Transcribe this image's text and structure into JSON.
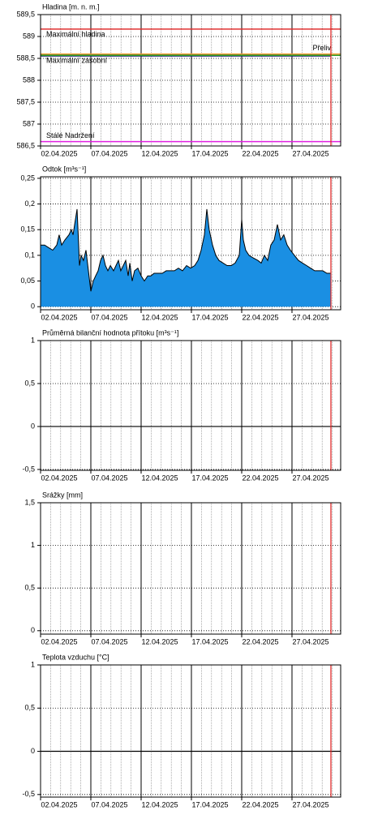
{
  "chart_data": [
    {
      "type": "line",
      "title": "Hladina [m. n. m.]",
      "xlim": [
        2,
        31.84
      ],
      "xticks": [
        {
          "value": 2,
          "label": "02.04.2025"
        },
        {
          "value": 7,
          "label": "07.04.2025"
        },
        {
          "value": 12,
          "label": "12.04.2025"
        },
        {
          "value": 17,
          "label": "17.04.2025"
        },
        {
          "value": 22,
          "label": "22.04.2025"
        },
        {
          "value": 27,
          "label": "27.04.2025"
        }
      ],
      "xminorticks": [
        3,
        4,
        5,
        6,
        8,
        9,
        10,
        11,
        13,
        14,
        15,
        16,
        18,
        19,
        20,
        21,
        23,
        24,
        25,
        26,
        28,
        29,
        30,
        31
      ],
      "ylim": [
        586.5,
        589.5
      ],
      "yticks": [
        {
          "value": 586.5,
          "label": "586,5"
        },
        587,
        {
          "value": 587.5,
          "label": "587,5"
        },
        588,
        {
          "value": 588.5,
          "label": "588,5"
        },
        589,
        {
          "value": 589.5,
          "label": "589,5"
        }
      ],
      "grid": true,
      "vline": 30.87,
      "vline_color": "#e02020",
      "hlines": [
        {
          "label": "Maximální hladina",
          "color": "#e03030",
          "value": 589.17,
          "label_align": "left"
        },
        {
          "label": "Přeliv",
          "color": "#f0a030",
          "value": 588.6,
          "label_align": "right"
        },
        {
          "label": "Maximální zásobní",
          "color": "#2a9a2a",
          "value": 588.57,
          "label_align": "left"
        },
        {
          "label": "Stálé Nadržení",
          "color": "#e020e0",
          "value": 586.6,
          "label_align": "left"
        }
      ],
      "series": [
        {
          "color": "#1a1a6e",
          "x": [
            2,
            30.87
          ],
          "values": [
            588.57,
            588.57
          ]
        }
      ]
    },
    {
      "type": "area",
      "title": "Odtok [m³s⁻¹]",
      "xlim": [
        2,
        31.84
      ],
      "xticks": [
        {
          "value": 2,
          "label": "02.04.2025"
        },
        {
          "value": 7,
          "label": "07.04.2025"
        },
        {
          "value": 12,
          "label": "12.04.2025"
        },
        {
          "value": 17,
          "label": "17.04.2025"
        },
        {
          "value": 22,
          "label": "22.04.2025"
        },
        {
          "value": 27,
          "label": "27.04.2025"
        }
      ],
      "xminorticks": [
        3,
        4,
        5,
        6,
        8,
        9,
        10,
        11,
        13,
        14,
        15,
        16,
        18,
        19,
        20,
        21,
        23,
        24,
        25,
        26,
        28,
        29,
        30,
        31
      ],
      "ylim": [
        -0.006,
        0.253
      ],
      "yticks": [
        0,
        {
          "value": 0.05,
          "label": "0,05"
        },
        {
          "value": 0.1,
          "label": "0,1"
        },
        {
          "value": 0.15,
          "label": "0,15"
        },
        {
          "value": 0.2,
          "label": "0,2"
        },
        {
          "value": 0.25,
          "label": "0,25"
        }
      ],
      "grid": true,
      "vline": 30.87,
      "vline_color": "#e02020",
      "series": [
        {
          "color": "#1a8fe3",
          "line_color": "#000000",
          "x": [
            2.0,
            2.4,
            2.81,
            3.21,
            3.61,
            3.85,
            4.1,
            4.42,
            4.82,
            5.06,
            5.23,
            5.39,
            5.63,
            5.79,
            5.87,
            6.03,
            6.27,
            6.52,
            6.76,
            7.0,
            7.24,
            7.48,
            7.73,
            7.97,
            8.21,
            8.45,
            8.69,
            8.94,
            9.26,
            9.5,
            9.74,
            9.98,
            10.23,
            10.47,
            10.71,
            10.87,
            11.11,
            11.35,
            11.68,
            12.0,
            12.32,
            12.65,
            12.97,
            13.29,
            13.69,
            14.1,
            14.5,
            14.9,
            15.31,
            15.71,
            16.11,
            16.52,
            16.92,
            17.32,
            17.65,
            17.97,
            18.29,
            18.53,
            18.77,
            19.1,
            19.42,
            19.74,
            20.15,
            20.55,
            20.95,
            21.35,
            21.76,
            22.0,
            22.16,
            22.4,
            22.73,
            23.13,
            23.61,
            23.94,
            24.26,
            24.58,
            24.9,
            25.23,
            25.55,
            25.87,
            26.19,
            26.52,
            26.84,
            27.24,
            27.65,
            28.05,
            28.45,
            28.85,
            29.26,
            29.66,
            30.06,
            30.47,
            30.87
          ],
          "values": [
            0.12,
            0.12,
            0.115,
            0.11,
            0.12,
            0.14,
            0.12,
            0.13,
            0.14,
            0.15,
            0.14,
            0.16,
            0.19,
            0.12,
            0.08,
            0.1,
            0.09,
            0.11,
            0.07,
            0.03,
            0.05,
            0.06,
            0.07,
            0.09,
            0.1,
            0.08,
            0.07,
            0.08,
            0.07,
            0.08,
            0.09,
            0.07,
            0.08,
            0.09,
            0.06,
            0.085,
            0.05,
            0.07,
            0.075,
            0.06,
            0.05,
            0.06,
            0.06,
            0.065,
            0.065,
            0.065,
            0.07,
            0.07,
            0.07,
            0.075,
            0.07,
            0.08,
            0.075,
            0.08,
            0.09,
            0.11,
            0.14,
            0.19,
            0.15,
            0.12,
            0.1,
            0.09,
            0.085,
            0.08,
            0.08,
            0.085,
            0.1,
            0.17,
            0.13,
            0.11,
            0.1,
            0.095,
            0.09,
            0.085,
            0.1,
            0.09,
            0.12,
            0.13,
            0.16,
            0.13,
            0.14,
            0.12,
            0.11,
            0.1,
            0.09,
            0.085,
            0.08,
            0.075,
            0.07,
            0.07,
            0.07,
            0.065,
            0.065
          ]
        }
      ]
    },
    {
      "type": "line",
      "title": "Průměrná bilanční hodnota přítoku   [m³s⁻¹]",
      "xlim": [
        2,
        31.84
      ],
      "xticks": [
        {
          "value": 2,
          "label": "02.04.2025"
        },
        {
          "value": 7,
          "label": "07.04.2025"
        },
        {
          "value": 12,
          "label": "12.04.2025"
        },
        {
          "value": 17,
          "label": "17.04.2025"
        },
        {
          "value": 22,
          "label": "22.04.2025"
        },
        {
          "value": 27,
          "label": "27.04.2025"
        }
      ],
      "xminorticks": [
        3,
        4,
        5,
        6,
        8,
        9,
        10,
        11,
        13,
        14,
        15,
        16,
        18,
        19,
        20,
        21,
        23,
        24,
        25,
        26,
        28,
        29,
        30,
        31
      ],
      "ylim": [
        -0.51,
        1
      ],
      "yticks": [
        {
          "value": -0.5,
          "label": "-0,5"
        },
        0,
        {
          "value": 0.5,
          "label": "0,5"
        },
        1
      ],
      "grid": true,
      "zero_line": true,
      "vline": 30.87,
      "vline_color": "#e02020",
      "series": []
    },
    {
      "type": "line",
      "title": "Srážky [mm]",
      "xlim": [
        2,
        31.84
      ],
      "xticks": [
        {
          "value": 2,
          "label": "02.04.2025"
        },
        {
          "value": 7,
          "label": "07.04.2025"
        },
        {
          "value": 12,
          "label": "12.04.2025"
        },
        {
          "value": 17,
          "label": "17.04.2025"
        },
        {
          "value": 22,
          "label": "22.04.2025"
        },
        {
          "value": 27,
          "label": "27.04.2025"
        }
      ],
      "xminorticks": [
        3,
        4,
        5,
        6,
        8,
        9,
        10,
        11,
        13,
        14,
        15,
        16,
        18,
        19,
        20,
        21,
        23,
        24,
        25,
        26,
        28,
        29,
        30,
        31
      ],
      "ylim": [
        -0.04,
        1.5
      ],
      "yticks": [
        0,
        {
          "value": 0.5,
          "label": "0,5"
        },
        1,
        {
          "value": 1.5,
          "label": "1,5"
        }
      ],
      "grid": true,
      "vline": 30.87,
      "vline_color": "#e02020",
      "series": []
    },
    {
      "type": "line",
      "title": "Teplota vzduchu [°C]",
      "xlim": [
        2,
        31.84
      ],
      "xticks": [
        {
          "value": 2,
          "label": "02.04.2025"
        },
        {
          "value": 7,
          "label": "07.04.2025"
        },
        {
          "value": 12,
          "label": "12.04.2025"
        },
        {
          "value": 17,
          "label": "17.04.2025"
        },
        {
          "value": 22,
          "label": "22.04.2025"
        },
        {
          "value": 27,
          "label": "27.04.2025"
        }
      ],
      "xminorticks": [
        3,
        4,
        5,
        6,
        8,
        9,
        10,
        11,
        13,
        14,
        15,
        16,
        18,
        19,
        20,
        21,
        23,
        24,
        25,
        26,
        28,
        29,
        30,
        31
      ],
      "ylim": [
        -0.53,
        1
      ],
      "yticks": [
        {
          "value": -0.5,
          "label": "-0,5"
        },
        0,
        {
          "value": 0.5,
          "label": "0,5"
        },
        1
      ],
      "grid": true,
      "zero_line": true,
      "vline": 30.87,
      "vline_color": "#e02020",
      "series": []
    }
  ]
}
